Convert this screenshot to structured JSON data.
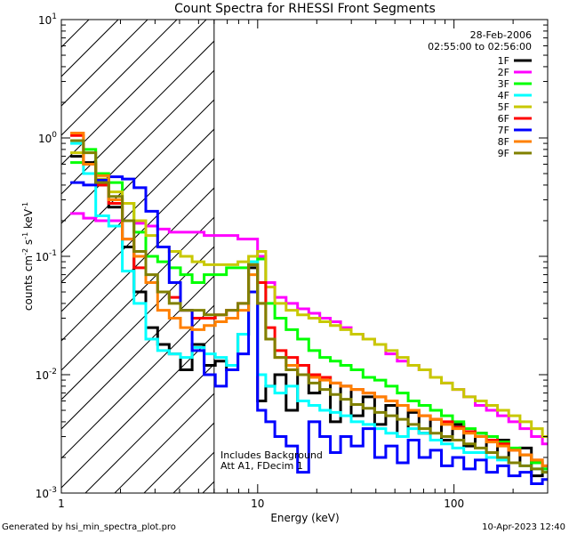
{
  "chart_data": {
    "type": "line",
    "title": "Count Spectra for RHESSI Front Segments",
    "date": "28-Feb-2006",
    "time_range": "02:55:00 to 02:56:00",
    "xlabel": "Energy (keV)",
    "ylabel": "counts cm-2 s-1 keV-1",
    "xscale": "log",
    "yscale": "log",
    "xlim": [
      1,
      300
    ],
    "ylim": [
      0.001,
      10
    ],
    "x_ticks": [
      {
        "value": 1,
        "label": "1"
      },
      {
        "value": 10,
        "label": "10"
      },
      {
        "value": 100,
        "label": "100"
      }
    ],
    "y_ticks": [
      {
        "value": 0.001,
        "mant": "10",
        "exp": "-3"
      },
      {
        "value": 0.01,
        "mant": "10",
        "exp": "-2"
      },
      {
        "value": 0.1,
        "mant": "10",
        "exp": "-1"
      },
      {
        "value": 1,
        "mant": "10",
        "exp": "0"
      },
      {
        "value": 10,
        "mant": "10",
        "exp": "1"
      }
    ],
    "hatched_region": {
      "x_min": 1,
      "x_max": 6
    },
    "annotations": [
      "Includes Background",
      "Att A1, FDecim 1"
    ],
    "legend_position": "top-right",
    "energy_bins": [
      1.2,
      1.4,
      1.6,
      1.9,
      2.2,
      2.5,
      2.9,
      3.3,
      3.8,
      4.3,
      5.0,
      5.7,
      6.5,
      7.4,
      8.5,
      9.5,
      10.5,
      11.5,
      13,
      15,
      17,
      19.5,
      22,
      25,
      28,
      32,
      37,
      42,
      48,
      55,
      62,
      71,
      81,
      92,
      105,
      120,
      137,
      156,
      178,
      203,
      232,
      265,
      300
    ],
    "series": [
      {
        "name": "1F",
        "color": "#000000",
        "values": [
          0.7,
          0.62,
          0.4,
          0.26,
          0.12,
          0.05,
          0.025,
          0.018,
          0.015,
          0.011,
          0.018,
          0.012,
          0.013,
          0.011,
          0.022,
          0.08,
          0.006,
          0.008,
          0.01,
          0.005,
          0.012,
          0.007,
          0.0095,
          0.004,
          0.008,
          0.0045,
          0.0065,
          0.0038,
          0.0055,
          0.003,
          0.0048,
          0.0032,
          0.0042,
          0.0028,
          0.0038,
          0.0025,
          0.0032,
          0.0022,
          0.0028,
          0.0018,
          0.0024,
          0.0014,
          0.0016
        ]
      },
      {
        "name": "2F",
        "color": "#ff00ff",
        "values": [
          0.23,
          0.21,
          0.2,
          0.2,
          0.2,
          0.19,
          0.18,
          0.17,
          0.16,
          0.16,
          0.16,
          0.15,
          0.15,
          0.15,
          0.14,
          0.14,
          0.1,
          0.06,
          0.045,
          0.04,
          0.036,
          0.033,
          0.03,
          0.028,
          0.025,
          0.022,
          0.02,
          0.018,
          0.015,
          0.013,
          0.012,
          0.011,
          0.0095,
          0.0085,
          0.0075,
          0.0065,
          0.0055,
          0.005,
          0.0045,
          0.004,
          0.0035,
          0.003,
          0.0026
        ]
      },
      {
        "name": "3F",
        "color": "#00ff00",
        "values": [
          0.62,
          0.8,
          0.5,
          0.42,
          0.28,
          0.16,
          0.1,
          0.09,
          0.08,
          0.07,
          0.06,
          0.07,
          0.07,
          0.08,
          0.08,
          0.09,
          0.095,
          0.04,
          0.03,
          0.024,
          0.02,
          0.016,
          0.014,
          0.013,
          0.012,
          0.011,
          0.0095,
          0.009,
          0.008,
          0.007,
          0.006,
          0.0055,
          0.005,
          0.0045,
          0.004,
          0.0035,
          0.0032,
          0.003,
          0.0027,
          0.0024,
          0.0021,
          0.0018,
          0.0016
        ]
      },
      {
        "name": "4F",
        "color": "#00ffff",
        "values": [
          0.9,
          0.5,
          0.22,
          0.18,
          0.075,
          0.04,
          0.02,
          0.016,
          0.015,
          0.014,
          0.017,
          0.015,
          0.014,
          0.012,
          0.022,
          0.09,
          0.01,
          0.008,
          0.007,
          0.008,
          0.006,
          0.0055,
          0.005,
          0.0048,
          0.0045,
          0.004,
          0.0038,
          0.0035,
          0.0032,
          0.003,
          0.0035,
          0.0032,
          0.0028,
          0.0026,
          0.0024,
          0.0022,
          0.0022,
          0.002,
          0.0019,
          0.0018,
          0.0017,
          0.0016,
          0.0015
        ]
      },
      {
        "name": "5F",
        "color": "#c8c800",
        "values": [
          0.75,
          0.6,
          0.45,
          0.35,
          0.28,
          0.2,
          0.15,
          0.12,
          0.11,
          0.1,
          0.09,
          0.085,
          0.085,
          0.085,
          0.09,
          0.1,
          0.11,
          0.055,
          0.04,
          0.035,
          0.032,
          0.03,
          0.028,
          0.026,
          0.024,
          0.022,
          0.02,
          0.018,
          0.016,
          0.014,
          0.012,
          0.011,
          0.0095,
          0.0085,
          0.0075,
          0.0065,
          0.006,
          0.0055,
          0.005,
          0.0045,
          0.004,
          0.0035,
          0.003
        ]
      },
      {
        "name": "6F",
        "color": "#ff0000",
        "values": [
          1.05,
          0.6,
          0.4,
          0.28,
          0.14,
          0.08,
          0.06,
          0.05,
          0.045,
          0.035,
          0.03,
          0.03,
          0.032,
          0.035,
          0.04,
          0.085,
          0.06,
          0.025,
          0.016,
          0.014,
          0.012,
          0.01,
          0.0095,
          0.0085,
          0.008,
          0.0075,
          0.007,
          0.0065,
          0.006,
          0.0055,
          0.005,
          0.0045,
          0.0042,
          0.004,
          0.0036,
          0.0033,
          0.003,
          0.0028,
          0.0026,
          0.0023,
          0.0021,
          0.0019,
          0.0017
        ]
      },
      {
        "name": "7F",
        "color": "#0000ff",
        "values": [
          0.42,
          0.4,
          0.44,
          0.47,
          0.45,
          0.38,
          0.24,
          0.12,
          0.06,
          0.035,
          0.016,
          0.01,
          0.008,
          0.011,
          0.015,
          0.05,
          0.005,
          0.004,
          0.003,
          0.0025,
          0.0015,
          0.004,
          0.003,
          0.0022,
          0.003,
          0.0025,
          0.0035,
          0.002,
          0.0025,
          0.0018,
          0.0028,
          0.002,
          0.0023,
          0.0017,
          0.002,
          0.0016,
          0.0019,
          0.0015,
          0.0017,
          0.0014,
          0.0015,
          0.0012,
          0.0013
        ]
      },
      {
        "name": "8F",
        "color": "#ff8000",
        "values": [
          1.1,
          0.6,
          0.48,
          0.3,
          0.14,
          0.1,
          0.06,
          0.035,
          0.03,
          0.025,
          0.024,
          0.026,
          0.028,
          0.03,
          0.035,
          0.07,
          0.04,
          0.02,
          0.014,
          0.012,
          0.01,
          0.0095,
          0.009,
          0.0085,
          0.008,
          0.0075,
          0.007,
          0.0065,
          0.006,
          0.0055,
          0.005,
          0.0045,
          0.0042,
          0.0038,
          0.0035,
          0.0032,
          0.003,
          0.0027,
          0.0025,
          0.0023,
          0.0021,
          0.0019,
          0.0017
        ]
      },
      {
        "name": "9F",
        "color": "#808000",
        "values": [
          0.95,
          0.75,
          0.42,
          0.32,
          0.2,
          0.11,
          0.07,
          0.05,
          0.04,
          0.035,
          0.035,
          0.032,
          0.032,
          0.035,
          0.04,
          0.085,
          0.04,
          0.02,
          0.014,
          0.011,
          0.01,
          0.0085,
          0.0075,
          0.0068,
          0.0062,
          0.0056,
          0.0052,
          0.0048,
          0.0045,
          0.0042,
          0.0038,
          0.0035,
          0.0032,
          0.003,
          0.0028,
          0.0026,
          0.0024,
          0.0022,
          0.002,
          0.0018,
          0.0017,
          0.0016,
          0.0015
        ]
      }
    ]
  },
  "footer": {
    "generated_by": "Generated by hsi_min_spectra_plot.pro",
    "timestamp": "10-Apr-2023 12:40"
  }
}
